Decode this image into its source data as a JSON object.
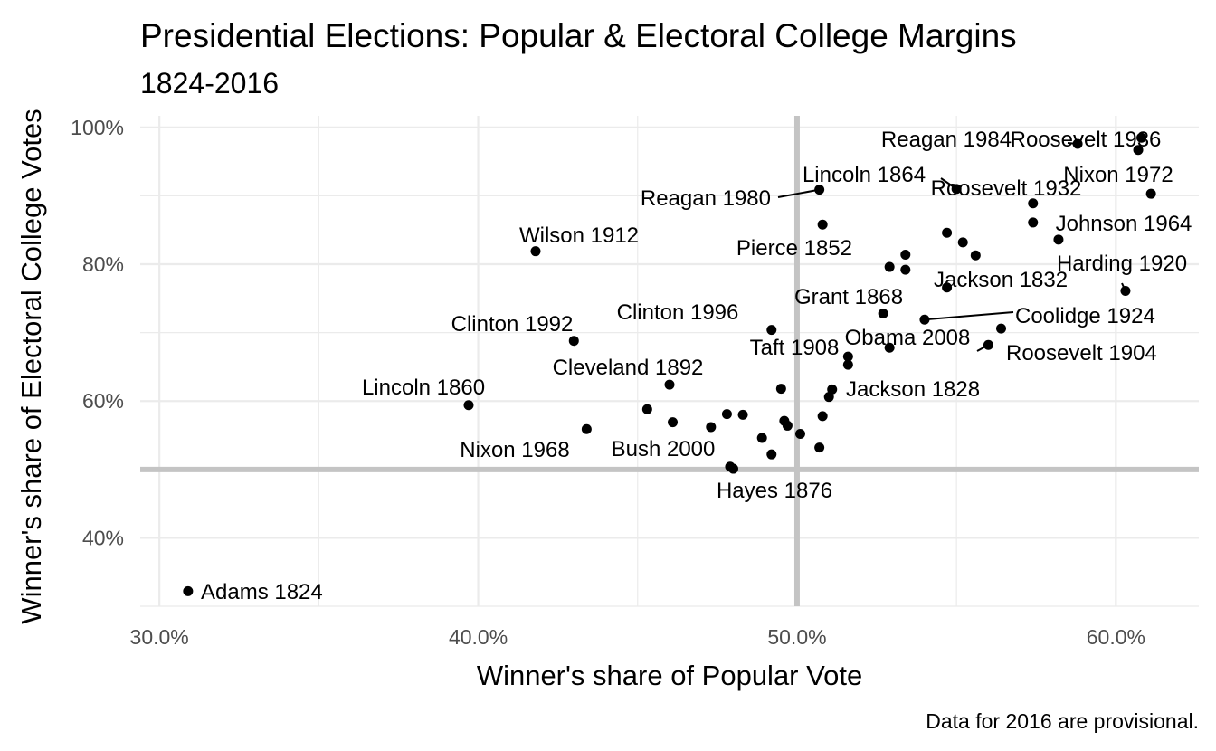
{
  "chart_data": {
    "type": "scatter",
    "title": "Presidential Elections: Popular & Electoral College Margins",
    "subtitle": "1824-2016",
    "xlabel": "Winner's share of Popular Vote",
    "ylabel": "Winner's share of Electoral College Votes",
    "caption": "Data for 2016 are provisional.",
    "xlim": [
      29.4,
      62.6
    ],
    "ylim": [
      30.0,
      101.7
    ],
    "x_ticks": [
      30,
      40,
      50,
      60
    ],
    "x_tick_labels": [
      "30.0%",
      "40.0%",
      "50.0%",
      "60.0%"
    ],
    "y_ticks": [
      40,
      60,
      80,
      100
    ],
    "y_tick_labels": [
      "40%",
      "60%",
      "80%",
      "100%"
    ],
    "reference_lines": {
      "x": 50,
      "y": 50
    },
    "grid": true,
    "points": [
      {
        "x": 30.9,
        "y": 32.2,
        "label": "Adams 1824"
      },
      {
        "x": 56.0,
        "y": 68.2,
        "label": "Jackson 1828"
      },
      {
        "x": 54.7,
        "y": 76.6,
        "label": "Jackson 1832"
      },
      {
        "x": 50.8,
        "y": 57.8,
        "label": ""
      },
      {
        "x": 52.9,
        "y": 79.6,
        "label": ""
      },
      {
        "x": 49.5,
        "y": 61.8,
        "label": ""
      },
      {
        "x": 47.3,
        "y": 56.2,
        "label": ""
      },
      {
        "x": 50.8,
        "y": 85.8,
        "label": "Pierce 1852"
      },
      {
        "x": 45.3,
        "y": 58.8,
        "label": ""
      },
      {
        "x": 39.7,
        "y": 59.4,
        "label": "Lincoln 1860"
      },
      {
        "x": 55.0,
        "y": 91.0,
        "label": "Lincoln 1864"
      },
      {
        "x": 52.7,
        "y": 72.8,
        "label": "Grant 1868"
      },
      {
        "x": 55.6,
        "y": 81.3,
        "label": ""
      },
      {
        "x": 48.0,
        "y": 50.1,
        "label": "Hayes 1876"
      },
      {
        "x": 48.3,
        "y": 58.0,
        "label": ""
      },
      {
        "x": 48.9,
        "y": 54.6,
        "label": ""
      },
      {
        "x": 47.8,
        "y": 58.1,
        "label": ""
      },
      {
        "x": 46.0,
        "y": 62.4,
        "label": "Cleveland 1892"
      },
      {
        "x": 51.0,
        "y": 60.6,
        "label": ""
      },
      {
        "x": 51.6,
        "y": 65.3,
        "label": ""
      },
      {
        "x": 56.4,
        "y": 70.6,
        "label": "Roosevelt 1904"
      },
      {
        "x": 51.6,
        "y": 66.5,
        "label": "Taft 1908"
      },
      {
        "x": 41.8,
        "y": 81.9,
        "label": "Wilson 1912"
      },
      {
        "x": 49.2,
        "y": 52.2,
        "label": ""
      },
      {
        "x": 60.3,
        "y": 76.1,
        "label": "Harding 1920"
      },
      {
        "x": 54.0,
        "y": 71.9,
        "label": "Coolidge 1924"
      },
      {
        "x": 58.2,
        "y": 83.6,
        "label": ""
      },
      {
        "x": 57.4,
        "y": 88.9,
        "label": "Roosevelt 1932"
      },
      {
        "x": 60.8,
        "y": 98.5,
        "label": "Roosevelt 1936"
      },
      {
        "x": 54.7,
        "y": 84.6,
        "label": ""
      },
      {
        "x": 53.4,
        "y": 81.4,
        "label": ""
      },
      {
        "x": 49.6,
        "y": 57.1,
        "label": ""
      },
      {
        "x": 55.2,
        "y": 83.2,
        "label": ""
      },
      {
        "x": 57.4,
        "y": 86.1,
        "label": ""
      },
      {
        "x": 49.7,
        "y": 56.4,
        "label": ""
      },
      {
        "x": 61.1,
        "y": 90.3,
        "label": "Johnson 1964"
      },
      {
        "x": 43.4,
        "y": 55.9,
        "label": "Nixon 1968"
      },
      {
        "x": 60.7,
        "y": 96.7,
        "label": "Nixon 1972"
      },
      {
        "x": 50.1,
        "y": 55.2,
        "label": ""
      },
      {
        "x": 50.7,
        "y": 90.9,
        "label": "Reagan 1980"
      },
      {
        "x": 58.8,
        "y": 97.6,
        "label": "Reagan 1984"
      },
      {
        "x": 53.4,
        "y": 79.2,
        "label": ""
      },
      {
        "x": 43.0,
        "y": 68.8,
        "label": "Clinton 1992"
      },
      {
        "x": 49.2,
        "y": 70.4,
        "label": "Clinton 1996"
      },
      {
        "x": 47.9,
        "y": 50.4,
        "label": "Bush 2000"
      },
      {
        "x": 50.7,
        "y": 53.2,
        "label": ""
      },
      {
        "x": 52.9,
        "y": 67.8,
        "label": "Obama 2008"
      },
      {
        "x": 51.1,
        "y": 61.7,
        "label": ""
      },
      {
        "x": 46.1,
        "y": 56.9,
        "label": ""
      }
    ]
  }
}
